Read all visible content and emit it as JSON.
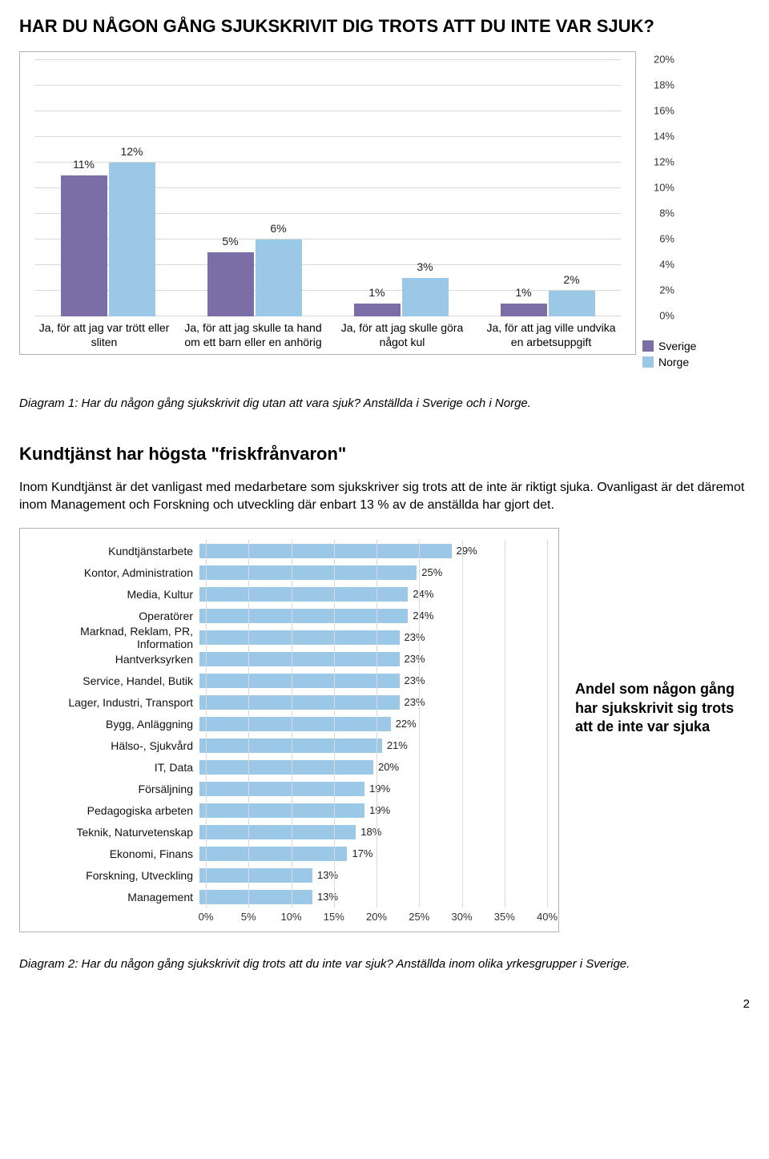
{
  "title": "HAR DU NÅGON GÅNG SJUKSKRIVIT DIG TROTS ATT DU INTE VAR SJUK?",
  "caption1": "Diagram 1: Har du någon gång sjukskrivit dig utan att vara sjuk? Anställda i Sverige och i Norge.",
  "heading2": "Kundtjänst har högsta \"friskfrånvaron\"",
  "para1": "Inom Kundtjänst är det vanligast med medarbetare som sjukskriver sig trots att de inte är riktigt sjuka. Ovanligast är det däremot inom Management och Forskning och utveckling där enbart 13 % av de anställda har gjort det.",
  "sidenote": "Andel som någon gång har sjukskrivit sig trots att de inte var sjuka",
  "caption2": "Diagram 2: Har du någon gång sjukskrivit dig trots att du inte var sjuk? Anställda inom olika yrkesgrupper i Sverige.",
  "page_number": "2",
  "chart1": {
    "type": "grouped-bar",
    "ymax_pct": 20,
    "ytick_step": 2,
    "grid_color": "#d9d9d9",
    "border_color": "#b0b0b0",
    "series": [
      {
        "name": "Sverige",
        "color": "#7b6ea6"
      },
      {
        "name": "Norge",
        "color": "#9cc8e8"
      }
    ],
    "yticks": [
      "20%",
      "18%",
      "16%",
      "14%",
      "12%",
      "10%",
      "8%",
      "6%",
      "4%",
      "2%",
      "0%"
    ],
    "categories": [
      "Ja, för att jag var trött eller sliten",
      "Ja, för att jag skulle ta hand om ett barn eller en anhörig",
      "Ja, för att jag skulle göra något kul",
      "Ja, för att jag ville undvika en arbetsuppgift"
    ],
    "data": {
      "Sverige": [
        11,
        5,
        1,
        1
      ],
      "Norge": [
        12,
        6,
        3,
        2
      ]
    },
    "labels_display": {
      "Sverige": [
        "11%",
        "5%",
        "1%",
        "1%"
      ],
      "Norge": [
        "12%",
        "6%",
        "3%",
        "2%"
      ]
    }
  },
  "chart2": {
    "type": "hbar",
    "xmax_pct": 40,
    "xtick_step": 5,
    "bar_color": "#9cc8e8",
    "grid_color": "#d9d9d9",
    "border_color": "#b0b0b0",
    "xticks": [
      "0%",
      "5%",
      "10%",
      "15%",
      "20%",
      "25%",
      "30%",
      "35%",
      "40%"
    ],
    "categories": [
      "Kundtjänstarbete",
      "Kontor, Administration",
      "Media, Kultur",
      "Operatörer",
      "Marknad, Reklam, PR, Information",
      "Hantverksyrken",
      "Service, Handel, Butik",
      "Lager, Industri, Transport",
      "Bygg, Anläggning",
      "Hälso-, Sjukvård",
      "IT, Data",
      "Försäljning",
      "Pedagogiska arbeten",
      "Teknik, Naturvetenskap",
      "Ekonomi, Finans",
      "Forskning, Utveckling",
      "Management"
    ],
    "values": [
      29,
      25,
      24,
      24,
      23,
      23,
      23,
      23,
      22,
      21,
      20,
      19,
      19,
      18,
      17,
      13,
      13
    ],
    "labels_display": [
      "29%",
      "25%",
      "24%",
      "24%",
      "23%",
      "23%",
      "23%",
      "23%",
      "22%",
      "21%",
      "20%",
      "19%",
      "19%",
      "18%",
      "17%",
      "13%",
      "13%"
    ]
  }
}
